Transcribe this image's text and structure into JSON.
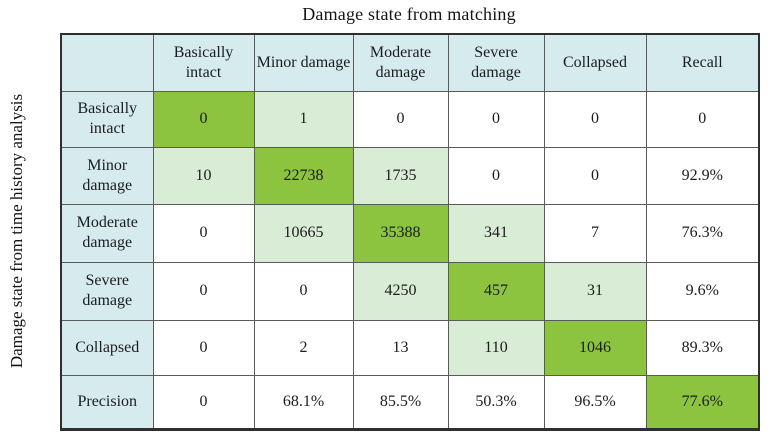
{
  "figure": {
    "title": "Damage state from matching",
    "y_axis_label": "Damage state from time history analysis"
  },
  "colors": {
    "header_bg": "#d5ebee",
    "match_green": "#8cc43f",
    "near_green": "#d9ecd6",
    "cell_white": "#ffffff",
    "grid_line": "#5a5a5a",
    "outer_border": "#2f2f2f"
  },
  "chart_data": {
    "type": "heatmap",
    "title": "Damage state from matching",
    "xlabel": "Damage state from matching",
    "ylabel": "Damage state from time history analysis",
    "classes": [
      "Basically intact",
      "Minor damage",
      "Moderate damage",
      "Severe damage",
      "Collapsed"
    ],
    "matrix_counts": [
      [
        0,
        1,
        0,
        0,
        0
      ],
      [
        10,
        22738,
        1735,
        0,
        0
      ],
      [
        0,
        10665,
        35388,
        341,
        7
      ],
      [
        0,
        0,
        4250,
        457,
        31
      ],
      [
        0,
        2,
        13,
        110,
        1046
      ]
    ],
    "recall_percent": [
      0,
      92.9,
      76.3,
      9.6,
      89.3
    ],
    "precision_percent": [
      0,
      68.1,
      85.5,
      50.3,
      96.5
    ],
    "overall_bottom_right_percent": 77.6,
    "column_headers": [
      "",
      "Basically intact",
      "Minor damage",
      "Moderate damage",
      "Severe damage",
      "Collapsed",
      "Recall"
    ],
    "row_labels": [
      "Basically intact",
      "Minor damage",
      "Moderate damage",
      "Severe damage",
      "Collapsed",
      "Precision"
    ],
    "display_rows": [
      {
        "label": "Basically intact",
        "cells": [
          "0",
          "1",
          "0",
          "0",
          "0",
          "0"
        ],
        "bg": [
          "m",
          "n",
          "w",
          "w",
          "w",
          "w"
        ]
      },
      {
        "label": "Minor damage",
        "cells": [
          "10",
          "22738",
          "1735",
          "0",
          "0",
          "92.9%"
        ],
        "bg": [
          "n",
          "m",
          "n",
          "w",
          "w",
          "w"
        ]
      },
      {
        "label": "Moderate damage",
        "cells": [
          "0",
          "10665",
          "35388",
          "341",
          "7",
          "76.3%"
        ],
        "bg": [
          "w",
          "n",
          "m",
          "n",
          "w",
          "w"
        ]
      },
      {
        "label": "Severe damage",
        "cells": [
          "0",
          "0",
          "4250",
          "457",
          "31",
          "9.6%"
        ],
        "bg": [
          "w",
          "w",
          "n",
          "m",
          "n",
          "w"
        ]
      },
      {
        "label": "Collapsed",
        "cells": [
          "0",
          "2",
          "13",
          "110",
          "1046",
          "89.3%"
        ],
        "bg": [
          "w",
          "w",
          "w",
          "n",
          "m",
          "w"
        ]
      },
      {
        "label": "Precision",
        "cells": [
          "0",
          "68.1%",
          "85.5%",
          "50.3%",
          "96.5%",
          "77.6%"
        ],
        "bg": [
          "w",
          "w",
          "w",
          "w",
          "w",
          "m"
        ]
      }
    ]
  }
}
